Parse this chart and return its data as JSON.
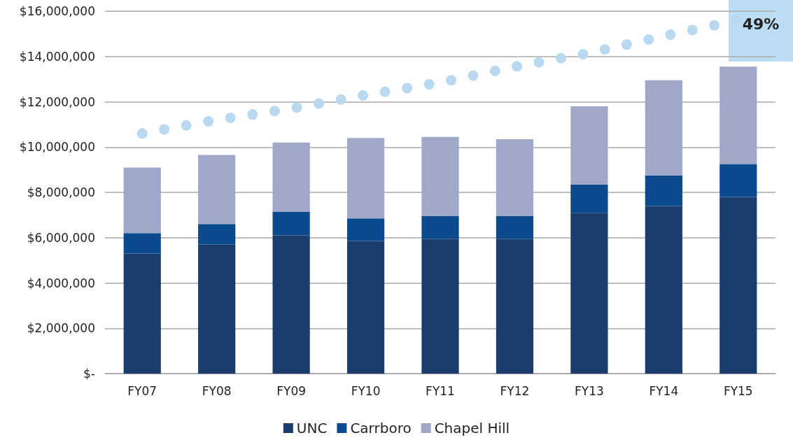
{
  "chart_data": {
    "type": "bar",
    "stacked": true,
    "categories": [
      "FY07",
      "FY08",
      "FY09",
      "FY10",
      "FY11",
      "FY12",
      "FY13",
      "FY14",
      "FY15"
    ],
    "series": [
      {
        "name": "UNC",
        "color": "#1a3d6e",
        "values": [
          5300000,
          5700000,
          6100000,
          5850000,
          5950000,
          5950000,
          7100000,
          7400000,
          7800000
        ]
      },
      {
        "name": "Carrboro",
        "color": "#0b4a8c",
        "values": [
          900000,
          900000,
          1050000,
          1000000,
          1000000,
          1000000,
          1250000,
          1350000,
          1450000
        ]
      },
      {
        "name": "Chapel Hill",
        "color": "#9fa8c8",
        "values": [
          2900000,
          3050000,
          3050000,
          3550000,
          3500000,
          3400000,
          3450000,
          4200000,
          4300000
        ]
      },
      {
        "type": "line",
        "color": "#b9d9f0",
        "line_style": "dotted",
        "values": [
          10600000,
          11200000,
          11700000,
          12300000,
          12850000,
          13550000,
          14150000,
          14900000,
          15600000
        ]
      }
    ],
    "ylim": [
      0,
      16000000
    ],
    "yticks": [
      {
        "value": 0,
        "label": "$-"
      },
      {
        "value": 2000000,
        "label": "$2,000,000"
      },
      {
        "value": 4000000,
        "label": "$4,000,000"
      },
      {
        "value": 6000000,
        "label": "$6,000,000"
      },
      {
        "value": 8000000,
        "label": "$8,000,000"
      },
      {
        "value": 10000000,
        "label": "$10,000,000"
      },
      {
        "value": 12000000,
        "label": "$12,000,000"
      },
      {
        "value": 14000000,
        "label": "$14,000,000"
      },
      {
        "value": 16000000,
        "label": "$16,000,000"
      }
    ],
    "grid": "y",
    "legend": "bottom",
    "annotations": [
      "49%"
    ]
  }
}
